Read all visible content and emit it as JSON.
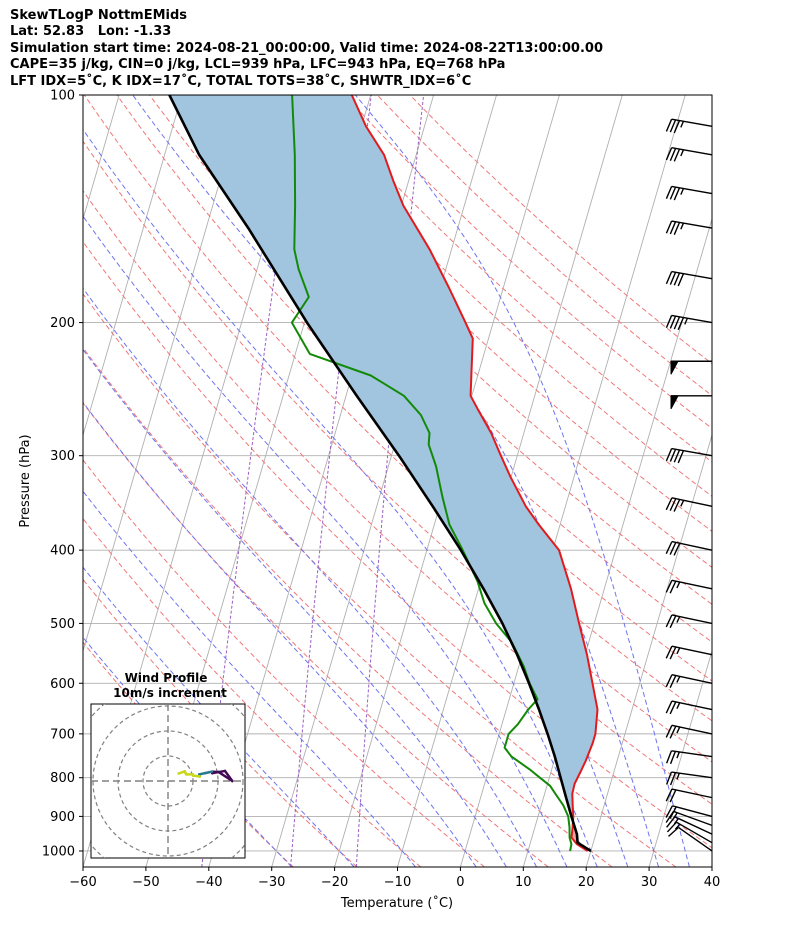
{
  "header": {
    "line1": "SkewTLogP NottmEMids",
    "line2": "Lat: 52.83   Lon: -1.33",
    "line3": "Simulation start time: 2024-08-21_00:00:00, Valid time: 2024-08-22T13:00:00.00",
    "line4": "CAPE=35 j/kg, CIN=0 j/kg, LCL=939 hPa, LFC=943 hPa, EQ=768 hPa",
    "line5": "LFT IDX=5˚C, K IDX=17˚C, TOTAL TOTS=38˚C, SHWTR_IDX=6˚C"
  },
  "chart_data": {
    "type": "skewt",
    "title": "SkewTLogP NottmEMids",
    "xlabel": "Temperature (˚C)",
    "ylabel": "Pressure (hPa)",
    "xlim": [
      -60,
      40
    ],
    "ylim": [
      1050,
      100
    ],
    "x_ticks": [
      "−60",
      "−50",
      "−40",
      "−30",
      "−20",
      "−10",
      "0",
      "10",
      "20",
      "30",
      "40"
    ],
    "y_ticks": [
      "100",
      "200",
      "300",
      "400",
      "500",
      "600",
      "700",
      "800",
      "900",
      "1000"
    ],
    "temperature": [
      [
        1000,
        19.5
      ],
      [
        980,
        17.5
      ],
      [
        960,
        16.3
      ],
      [
        930,
        16.0
      ],
      [
        900,
        15.6
      ],
      [
        870,
        15.0
      ],
      [
        840,
        14.4
      ],
      [
        815,
        14.3
      ],
      [
        800,
        14.5
      ],
      [
        785,
        14.7
      ],
      [
        760,
        15.0
      ],
      [
        720,
        15.3
      ],
      [
        700,
        15.3
      ],
      [
        650,
        14.5
      ],
      [
        600,
        12.5
      ],
      [
        550,
        10.3
      ],
      [
        500,
        7.6
      ],
      [
        450,
        4.7
      ],
      [
        400,
        1.0
      ],
      [
        370,
        -3.4
      ],
      [
        350,
        -6.3
      ],
      [
        320,
        -10.1
      ],
      [
        300,
        -12.6
      ],
      [
        280,
        -15.2
      ],
      [
        260,
        -18.5
      ],
      [
        250,
        -20.2
      ],
      [
        230,
        -21.3
      ],
      [
        210,
        -22.5
      ],
      [
        200,
        -24.4
      ],
      [
        180,
        -28.6
      ],
      [
        160,
        -33.5
      ],
      [
        140,
        -39.7
      ],
      [
        130,
        -42.4
      ],
      [
        120,
        -45.1
      ],
      [
        110,
        -49.3
      ],
      [
        100,
        -53.0
      ]
    ],
    "dewpoint": [
      [
        1000,
        16.7
      ],
      [
        980,
        16.6
      ],
      [
        960,
        16.0
      ],
      [
        930,
        15.5
      ],
      [
        900,
        14.8
      ],
      [
        870,
        13.5
      ],
      [
        840,
        11.7
      ],
      [
        820,
        10.5
      ],
      [
        800,
        8.5
      ],
      [
        780,
        6.5
      ],
      [
        750,
        3.0
      ],
      [
        730,
        1.5
      ],
      [
        700,
        1.5
      ],
      [
        680,
        2.5
      ],
      [
        650,
        3.5
      ],
      [
        630,
        4.5
      ],
      [
        600,
        2.5
      ],
      [
        570,
        0.8
      ],
      [
        530,
        -2.2
      ],
      [
        500,
        -5.6
      ],
      [
        470,
        -8.4
      ],
      [
        440,
        -10.5
      ],
      [
        400,
        -14.3
      ],
      [
        370,
        -17.6
      ],
      [
        340,
        -20.0
      ],
      [
        310,
        -22.4
      ],
      [
        290,
        -24.6
      ],
      [
        280,
        -25.0
      ],
      [
        265,
        -27.2
      ],
      [
        250,
        -30.8
      ],
      [
        235,
        -37.0
      ],
      [
        220,
        -47.7
      ],
      [
        200,
        -52.0
      ],
      [
        185,
        -50.5
      ],
      [
        170,
        -53.4
      ],
      [
        160,
        -55.0
      ],
      [
        140,
        -56.9
      ],
      [
        120,
        -59.3
      ],
      [
        100,
        -62.5
      ]
    ],
    "parcel": [
      [
        1000,
        20.0
      ],
      [
        975,
        17.5
      ],
      [
        950,
        17.0
      ],
      [
        900,
        15.3
      ],
      [
        850,
        13.6
      ],
      [
        800,
        11.8
      ],
      [
        750,
        9.9
      ],
      [
        700,
        7.7
      ],
      [
        650,
        5.2
      ],
      [
        600,
        2.4
      ],
      [
        550,
        -0.8
      ],
      [
        500,
        -4.6
      ],
      [
        450,
        -9.2
      ],
      [
        400,
        -14.6
      ],
      [
        350,
        -21.1
      ],
      [
        300,
        -28.8
      ],
      [
        250,
        -38.3
      ],
      [
        200,
        -49.6
      ],
      [
        150,
        -63.3
      ],
      [
        120,
        -74.5
      ],
      [
        100,
        -82.0
      ]
    ],
    "wind_barbs": [
      {
        "p": 1000,
        "speed_kt": 10,
        "dir_deg": 235
      },
      {
        "p": 975,
        "speed_kt": 15,
        "dir_deg": 240
      },
      {
        "p": 950,
        "speed_kt": 15,
        "dir_deg": 245
      },
      {
        "p": 925,
        "speed_kt": 15,
        "dir_deg": 250
      },
      {
        "p": 900,
        "speed_kt": 20,
        "dir_deg": 255
      },
      {
        "p": 850,
        "speed_kt": 20,
        "dir_deg": 258
      },
      {
        "p": 800,
        "speed_kt": 25,
        "dir_deg": 262
      },
      {
        "p": 750,
        "speed_kt": 25,
        "dir_deg": 262
      },
      {
        "p": 700,
        "speed_kt": 25,
        "dir_deg": 258
      },
      {
        "p": 650,
        "speed_kt": 25,
        "dir_deg": 258
      },
      {
        "p": 600,
        "speed_kt": 25,
        "dir_deg": 258
      },
      {
        "p": 550,
        "speed_kt": 25,
        "dir_deg": 258
      },
      {
        "p": 500,
        "speed_kt": 25,
        "dir_deg": 258
      },
      {
        "p": 450,
        "speed_kt": 25,
        "dir_deg": 258
      },
      {
        "p": 400,
        "speed_kt": 30,
        "dir_deg": 258
      },
      {
        "p": 350,
        "speed_kt": 35,
        "dir_deg": 258
      },
      {
        "p": 300,
        "speed_kt": 40,
        "dir_deg": 260
      },
      {
        "p": 250,
        "speed_kt": 50,
        "dir_deg": 270
      },
      {
        "p": 225,
        "speed_kt": 50,
        "dir_deg": 270
      },
      {
        "p": 200,
        "speed_kt": 45,
        "dir_deg": 260
      },
      {
        "p": 175,
        "speed_kt": 40,
        "dir_deg": 260
      },
      {
        "p": 150,
        "speed_kt": 35,
        "dir_deg": 260
      },
      {
        "p": 135,
        "speed_kt": 35,
        "dir_deg": 260
      },
      {
        "p": 120,
        "speed_kt": 35,
        "dir_deg": 260
      },
      {
        "p": 110,
        "speed_kt": 35,
        "dir_deg": 260
      }
    ],
    "hodograph": {
      "title": "Wind Profile",
      "subtitle": "10m/s increment",
      "ring_step_ms": 10,
      "rings": 4
    },
    "colors": {
      "temperature": "#e31a1c",
      "dewpoint": "#138a07",
      "parcel": "#000000",
      "cape_fill": "#a1c4df",
      "cin_fill": "#f3a5a5",
      "isotherm": "#b0b0b0",
      "dry_adiabat": "#f07878",
      "moist_adiabat": "#6f74ee",
      "mixing_ratio": "#9b5ec3"
    }
  }
}
